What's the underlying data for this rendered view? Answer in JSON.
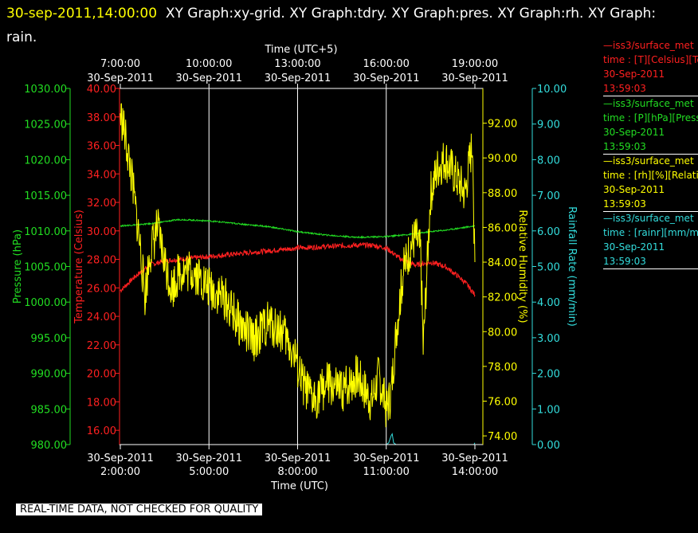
{
  "header": {
    "timestamp": "30-sep-2011,14:00:00",
    "graphs_line1": "XY Graph:xy-grid.  XY Graph:tdry.  XY Graph:pres.  XY Graph:rh.  XY Graph:",
    "graphs_line2": "rain."
  },
  "banner": "REAL-TIME DATA, NOT CHECKED FOR QUALITY",
  "legend": [
    {
      "line1": "—iss3/surface_met",
      "line2": "time : [T][Celsius][Tem",
      "date": "30-Sep-2011",
      "time": "13:59:03",
      "color": "#ff2020"
    },
    {
      "line1": "—iss3/surface_met",
      "line2": "time : [P][hPa][Press",
      "date": "30-Sep-2011",
      "time": "13:59:03",
      "color": "#22dd22"
    },
    {
      "line1": "—iss3/surface_met",
      "line2": "time : [rh][%][Relativ",
      "date": "30-Sep-2011",
      "time": "13:59:03",
      "color": "#ffff00"
    },
    {
      "line1": "—iss3/surface_met",
      "line2": "time : [rainr][mm/min",
      "date": "30-Sep-2011",
      "time": "13:59:03",
      "color": "#33dddd"
    }
  ],
  "colors": {
    "temperature": "#ff2020",
    "pressure": "#22dd22",
    "humidity": "#ffff00",
    "rain": "#33dddd",
    "grid": "#ffffff"
  },
  "chart_data": {
    "type": "line",
    "x_bottom_label": "Time (UTC)",
    "x_top_label": "Time (UTC+5)",
    "x_range_utc": [
      "2011-09-30 02:00:00",
      "2011-09-30 14:00:00"
    ],
    "bottom_ticks": [
      {
        "date": "30-Sep-2011",
        "time": "2:00:00"
      },
      {
        "date": "30-Sep-2011",
        "time": "5:00:00"
      },
      {
        "date": "30-Sep-2011",
        "time": "8:00:00"
      },
      {
        "date": "30-Sep-2011",
        "time": "11:00:00"
      },
      {
        "date": "30-Sep-2011",
        "time": "14:00:00"
      }
    ],
    "top_ticks": [
      {
        "date": "30-Sep-2011",
        "time": "7:00:00"
      },
      {
        "date": "30-Sep-2011",
        "time": "10:00:00"
      },
      {
        "date": "30-Sep-2011",
        "time": "13:00:00"
      },
      {
        "date": "30-Sep-2011",
        "time": "16:00:00"
      },
      {
        "date": "30-Sep-2011",
        "time": "19:00:00"
      }
    ],
    "grid": true,
    "axes": {
      "pressure": {
        "label": "Pressure (hPa)",
        "range": [
          980,
          1030
        ],
        "ticks": [
          "980.00",
          "985.00",
          "990.00",
          "995.00",
          "1000.00",
          "1005.00",
          "1010.00",
          "1015.00",
          "1020.00",
          "1025.00",
          "1030.00"
        ]
      },
      "temperature": {
        "label": "Temperature (Celsius)",
        "range": [
          15,
          40
        ],
        "ticks": [
          "16.00",
          "18.00",
          "20.00",
          "22.00",
          "24.00",
          "26.00",
          "28.00",
          "30.00",
          "32.00",
          "34.00",
          "36.00",
          "38.00",
          "40.00"
        ]
      },
      "humidity": {
        "label": "Relative Humidity (%)",
        "range": [
          73.5,
          94.0
        ],
        "ticks": [
          "74.00",
          "76.00",
          "78.00",
          "80.00",
          "82.00",
          "84.00",
          "86.00",
          "88.00",
          "90.00",
          "92.00"
        ]
      },
      "rain": {
        "label": "Rainfall Rate (mm/min)",
        "range": [
          0,
          10
        ],
        "ticks": [
          "0.00",
          "1.00",
          "2.00",
          "3.00",
          "4.00",
          "5.00",
          "6.00",
          "7.00",
          "8.00",
          "9.00",
          "10.00"
        ]
      }
    },
    "series": [
      {
        "key": "temperature",
        "axis": "temperature",
        "color": "#ff2020",
        "x": [
          "02:00",
          "02:30",
          "03:00",
          "03:30",
          "04:00",
          "05:00",
          "06:00",
          "07:00",
          "08:00",
          "09:00",
          "10:00",
          "10:30",
          "11:00",
          "11:30",
          "12:00",
          "12:30",
          "13:00",
          "13:30",
          "13:45",
          "14:00"
        ],
        "y": [
          25.8,
          26.8,
          27.6,
          27.9,
          28.0,
          28.2,
          28.4,
          28.6,
          28.8,
          28.9,
          29.0,
          29.0,
          28.8,
          28.0,
          27.6,
          27.8,
          27.5,
          26.7,
          26.2,
          25.5
        ]
      },
      {
        "key": "pressure",
        "axis": "pressure",
        "color": "#22dd22",
        "x": [
          "02:00",
          "03:00",
          "04:00",
          "05:00",
          "06:00",
          "07:00",
          "08:00",
          "09:00",
          "10:00",
          "11:00",
          "12:00",
          "12:30",
          "13:00",
          "13:30",
          "14:00"
        ],
        "y": [
          1010.7,
          1011.0,
          1011.6,
          1011.4,
          1011.0,
          1010.6,
          1009.9,
          1009.4,
          1009.1,
          1009.2,
          1009.6,
          1009.9,
          1010.1,
          1010.4,
          1010.7
        ]
      },
      {
        "key": "humidity",
        "axis": "humidity",
        "color": "#ffff00",
        "x": [
          "02:00",
          "02:05",
          "02:20",
          "02:40",
          "02:50",
          "03:00",
          "03:15",
          "03:30",
          "03:45",
          "04:00",
          "04:30",
          "05:00",
          "05:30",
          "06:00",
          "06:30",
          "07:00",
          "07:30",
          "07:55",
          "08:10",
          "08:30",
          "09:00",
          "09:30",
          "10:00",
          "10:30",
          "10:45",
          "11:00",
          "11:10",
          "11:20",
          "11:35",
          "11:50",
          "12:00",
          "12:10",
          "12:15",
          "12:30",
          "12:45",
          "13:00",
          "13:20",
          "13:40",
          "13:50",
          "13:56",
          "13:58",
          "14:00"
        ],
        "y": [
          92.5,
          92.0,
          89.5,
          85.0,
          82.0,
          84.5,
          86.0,
          84.0,
          82.5,
          83.5,
          83.5,
          82.5,
          82.0,
          80.5,
          79.5,
          80.5,
          80.0,
          78.5,
          77.0,
          76.0,
          77.0,
          76.5,
          77.5,
          76.0,
          77.5,
          75.5,
          76.5,
          80.0,
          83.5,
          85.0,
          85.5,
          84.5,
          79.0,
          88.0,
          89.5,
          90.0,
          89.0,
          88.0,
          90.0,
          91.0,
          85.5,
          84.0
        ]
      },
      {
        "key": "rain",
        "axis": "rain",
        "color": "#33dddd",
        "x": [
          "02:00",
          "06:00",
          "09:00",
          "10:50",
          "11:00",
          "11:05",
          "11:10",
          "11:12",
          "11:15",
          "11:20",
          "12:00",
          "13:00",
          "13:58",
          "14:00"
        ],
        "y": [
          0.0,
          0.0,
          0.0,
          0.0,
          0.0,
          0.05,
          0.25,
          0.3,
          0.05,
          0.0,
          0.0,
          0.0,
          0.0,
          0.05
        ]
      }
    ]
  }
}
